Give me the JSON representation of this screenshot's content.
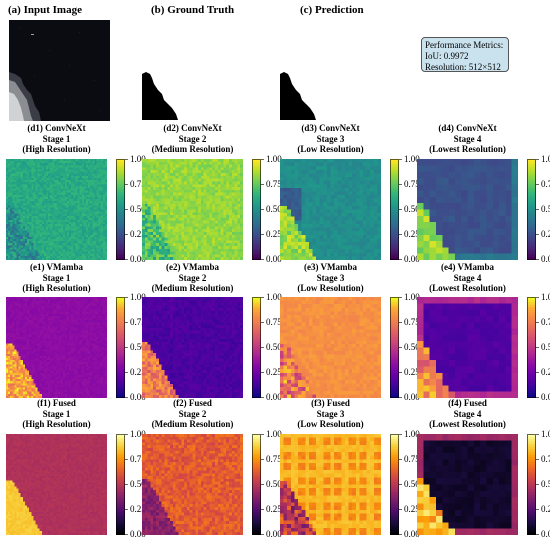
{
  "top_titles": {
    "input": "(a) Input Image",
    "ground_truth": "(b) Ground Truth",
    "prediction": "(c) Prediction"
  },
  "metrics": {
    "title": "Performance Metrics:",
    "iou": "IoU: 0.9972",
    "resolution": "Resolution: 512×512"
  },
  "rows": [
    {
      "id": "d",
      "colormap": "viridis",
      "panels": [
        {
          "lines": [
            "(d1) ConvNeXt",
            "Stage 1",
            "(High Resolution)"
          ]
        },
        {
          "lines": [
            "(d2) ConvNeXt",
            "Stage 2",
            "(Medium Resolution)"
          ]
        },
        {
          "lines": [
            "(d3) ConvNeXt",
            "Stage 3",
            "(Low Resolution)"
          ]
        },
        {
          "lines": [
            "(d4) ConvNeXt",
            "Stage 4",
            "(Lowest Resolution)"
          ]
        }
      ],
      "ticks": [
        "1.00",
        "0.75",
        "0.50",
        "0.25",
        "0.00"
      ]
    },
    {
      "id": "e",
      "colormap": "plasma",
      "panels": [
        {
          "lines": [
            "(e1) VMamba",
            "Stage 1",
            "(High Resolution)"
          ]
        },
        {
          "lines": [
            "(e2) VMamba",
            "Stage 2",
            "(Medium Resolution)"
          ]
        },
        {
          "lines": [
            "(e3) VMamba",
            "Stage 3",
            "(Low Resolution)"
          ]
        },
        {
          "lines": [
            "(e4) VMamba",
            "Stage 4",
            "(Lowest Resolution)"
          ]
        }
      ],
      "ticks": [
        "1.00",
        "0.75",
        "0.50",
        "0.25",
        "0.00"
      ]
    },
    {
      "id": "f",
      "colormap": "inferno",
      "panels": [
        {
          "lines": [
            "(f1) Fused",
            "Stage 1",
            "(High Resolution)"
          ]
        },
        {
          "lines": [
            "(f2) Fused",
            "Stage 2",
            "(Medium Resolution)"
          ]
        },
        {
          "lines": [
            "(f3) Fused",
            "Stage 3",
            "(Low Resolution)"
          ]
        },
        {
          "lines": [
            "(f4) Fused",
            "Stage 4",
            "(Lowest Resolution)"
          ]
        }
      ],
      "ticks": [
        "1.00",
        "0.75",
        "0.50",
        "0.25",
        "0.00"
      ]
    }
  ]
}
